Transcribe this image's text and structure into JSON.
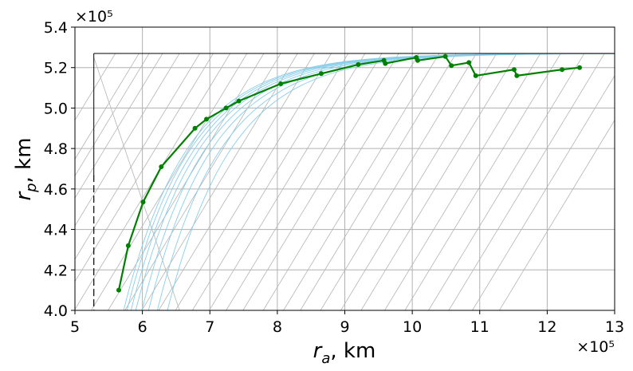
{
  "chart_data": {
    "type": "line",
    "xlabel": "r_a, km",
    "ylabel": "r_p, km",
    "x_multiplier_label": "×10⁵",
    "y_multiplier_label": "×10⁵",
    "xlim": [
      5,
      13
    ],
    "ylim": [
      4.0,
      5.4
    ],
    "x_ticks": [
      "5",
      "6",
      "7",
      "8",
      "9",
      "10",
      "11",
      "12",
      "13"
    ],
    "y_ticks": [
      "4.0",
      "4.2",
      "4.4",
      "4.6",
      "4.8",
      "5.0",
      "5.2",
      "5.4"
    ],
    "grid": true,
    "boundary": {
      "ra_min": 5.28,
      "rp_max": 5.27
    },
    "colors": {
      "trajectory": "#008000",
      "contours_blue": "#87ceeb",
      "contours_gray": "#b4b4b4",
      "grid": "#b0b0b0",
      "boundary": "#000000"
    },
    "series": [
      {
        "x": [
          5.65,
          5.79,
          6.01,
          6.28,
          6.78,
          6.95,
          7.24,
          7.43,
          8.05,
          8.65,
          9.2,
          9.58,
          9.6,
          10.06,
          10.08,
          10.49,
          10.58,
          10.84,
          10.94,
          11.51,
          11.55,
          12.22,
          12.48
        ],
        "y": [
          4.1,
          4.32,
          4.535,
          4.71,
          4.9,
          4.945,
          5.0,
          5.035,
          5.12,
          5.17,
          5.215,
          5.235,
          5.22,
          5.25,
          5.235,
          5.255,
          5.21,
          5.225,
          5.16,
          5.19,
          5.16,
          5.19,
          5.2
        ]
      }
    ]
  }
}
